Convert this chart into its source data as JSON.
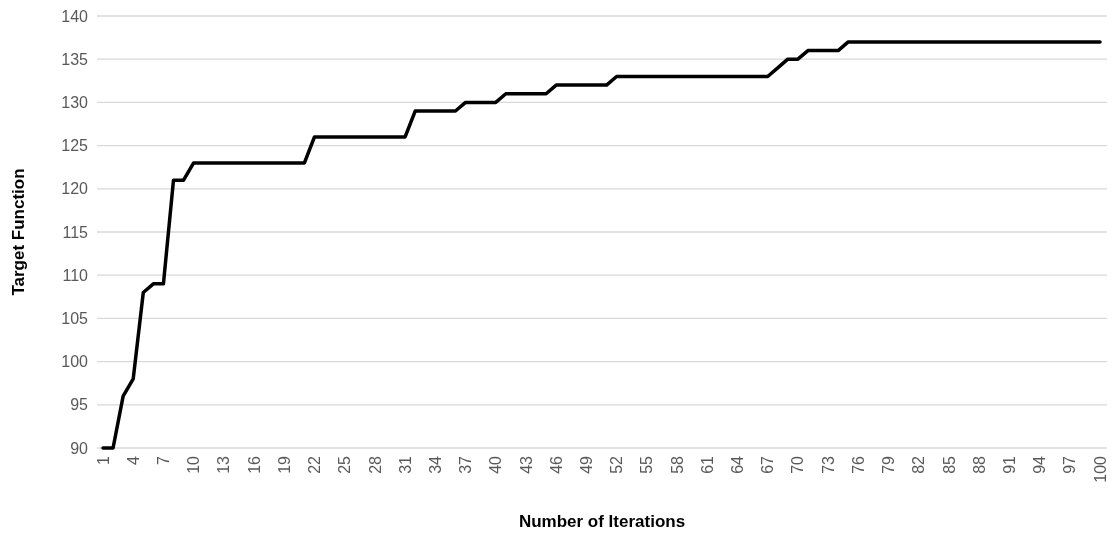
{
  "chart_data": {
    "type": "line",
    "xlabel": "Number of Iterations",
    "ylabel": "Target Function",
    "categories": [
      "1",
      null,
      null,
      "4",
      null,
      null,
      "7",
      null,
      null,
      "10",
      null,
      null,
      "13",
      null,
      null,
      "16",
      null,
      null,
      "19",
      null,
      null,
      "22",
      null,
      null,
      "25",
      null,
      null,
      "28",
      null,
      null,
      "31",
      null,
      null,
      "34",
      null,
      null,
      "37",
      null,
      null,
      "40",
      null,
      null,
      "43",
      null,
      null,
      "46",
      null,
      null,
      "49",
      null,
      null,
      "52",
      null,
      null,
      "55",
      null,
      null,
      "58",
      null,
      null,
      "61",
      null,
      null,
      "64",
      null,
      null,
      "67",
      null,
      null,
      "70",
      null,
      null,
      "73",
      null,
      null,
      "76",
      null,
      null,
      "79",
      null,
      null,
      "82",
      null,
      null,
      "85",
      null,
      null,
      "88",
      null,
      null,
      "91",
      null,
      null,
      "94",
      null,
      null,
      "97",
      null,
      null,
      "100"
    ],
    "series": [
      {
        "color": "#000000",
        "values": [
          90,
          90,
          96,
          98,
          108,
          109,
          109,
          121,
          121,
          123,
          123,
          123,
          123,
          123,
          123,
          123,
          123,
          123,
          123,
          123,
          123,
          126,
          126,
          126,
          126,
          126,
          126,
          126,
          126,
          126,
          126,
          129,
          129,
          129,
          129,
          129,
          130,
          130,
          130,
          130,
          131,
          131,
          131,
          131,
          131,
          132,
          132,
          132,
          132,
          132,
          132,
          133,
          133,
          133,
          133,
          133,
          133,
          133,
          133,
          133,
          133,
          133,
          133,
          133,
          133,
          133,
          133,
          134,
          135,
          135,
          136,
          136,
          136,
          136,
          137,
          137,
          137,
          137,
          137,
          137,
          137,
          137,
          137,
          137,
          137,
          137,
          137,
          137,
          137,
          137,
          137,
          137,
          137,
          137,
          137,
          137,
          137,
          137,
          137,
          137
        ]
      }
    ],
    "ylim": [
      90,
      140
    ],
    "yticks": [
      90,
      95,
      100,
      105,
      110,
      115,
      120,
      125,
      130,
      135,
      140
    ],
    "grid": "y",
    "marker": "none",
    "line_style": "solid"
  }
}
